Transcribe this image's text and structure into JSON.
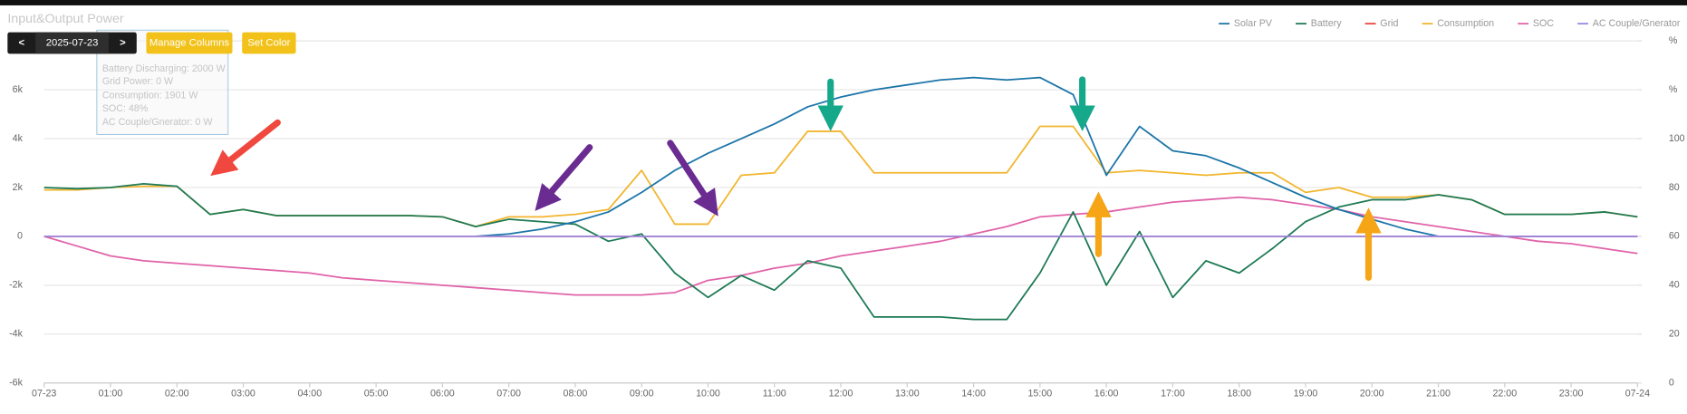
{
  "ui": {
    "title": "Input&Output Power",
    "prev_button": "<",
    "date": "2025-07-23",
    "next_button": ">",
    "manage_columns": "Manage Columns",
    "set_color": "Set Color",
    "tooltip": [
      "Battery Discharging: 2000 W",
      "Grid Power: 0 W",
      "Consumption: 1901 W",
      "SOC: 48%",
      "AC Couple/Gnerator: 0 W"
    ]
  },
  "chart_data": {
    "type": "line",
    "x": [
      0,
      0.5,
      1,
      1.5,
      2,
      2.5,
      3,
      3.5,
      4,
      4.5,
      5,
      5.5,
      6,
      6.5,
      7,
      7.5,
      8,
      8.5,
      9,
      9.5,
      10,
      10.5,
      11,
      11.5,
      12,
      12.5,
      13,
      13.5,
      14,
      14.5,
      15,
      15.5,
      16,
      16.5,
      17,
      17.5,
      18,
      18.5,
      19,
      19.5,
      20,
      20.5,
      21,
      21.5,
      22,
      22.5,
      23,
      23.5,
      24
    ],
    "xlim": [
      0,
      24
    ],
    "xticks": [
      {
        "value": 0,
        "label": "07-23"
      },
      {
        "value": 1,
        "label": "01:00"
      },
      {
        "value": 2,
        "label": "02:00"
      },
      {
        "value": 3,
        "label": "03:00"
      },
      {
        "value": 4,
        "label": "04:00"
      },
      {
        "value": 5,
        "label": "05:00"
      },
      {
        "value": 6,
        "label": "06:00"
      },
      {
        "value": 7,
        "label": "07:00"
      },
      {
        "value": 8,
        "label": "08:00"
      },
      {
        "value": 9,
        "label": "09:00"
      },
      {
        "value": 10,
        "label": "10:00"
      },
      {
        "value": 11,
        "label": "11:00"
      },
      {
        "value": 12,
        "label": "12:00"
      },
      {
        "value": 13,
        "label": "13:00"
      },
      {
        "value": 14,
        "label": "14:00"
      },
      {
        "value": 15,
        "label": "15:00"
      },
      {
        "value": 16,
        "label": "16:00"
      },
      {
        "value": 17,
        "label": "17:00"
      },
      {
        "value": 18,
        "label": "18:00"
      },
      {
        "value": 19,
        "label": "19:00"
      },
      {
        "value": 20,
        "label": "20:00"
      },
      {
        "value": 21,
        "label": "21:00"
      },
      {
        "value": 22,
        "label": "22:00"
      },
      {
        "value": 23,
        "label": "23:00"
      },
      {
        "value": 24,
        "label": "07-24"
      }
    ],
    "ylim": [
      -6000,
      8000
    ],
    "yticks": [
      {
        "value": -6000,
        "label": "-6k"
      },
      {
        "value": -4000,
        "label": "-4k"
      },
      {
        "value": -2000,
        "label": "-2k"
      },
      0,
      {
        "value": 2000,
        "label": "2k"
      },
      {
        "value": 4000,
        "label": "4k"
      },
      {
        "value": 6000,
        "label": "6k"
      }
    ],
    "y2lim": [
      0,
      140
    ],
    "y2ticks": [
      0,
      20,
      40,
      60,
      80,
      100,
      {
        "value": 120,
        "label": "%"
      },
      {
        "value": 140,
        "label": "%"
      }
    ],
    "grid": true,
    "legend": "top-right",
    "series": [
      {
        "name": "Solar PV",
        "color": "#1b75a8",
        "values": [
          null,
          null,
          null,
          null,
          null,
          null,
          null,
          null,
          null,
          null,
          null,
          null,
          null,
          0,
          100,
          300,
          600,
          1000,
          1800,
          2700,
          3400,
          4000,
          4600,
          5300,
          5700,
          6000,
          6200,
          6400,
          6500,
          6400,
          6500,
          5800,
          2500,
          4500,
          3500,
          3300,
          2800,
          2200,
          1600,
          1100,
          700,
          300,
          0,
          0,
          0,
          0,
          0,
          0,
          0
        ]
      },
      {
        "name": "Battery",
        "color": "#1e7a55",
        "values": [
          2000,
          1950,
          2000,
          2150,
          2050,
          900,
          1100,
          850,
          850,
          850,
          850,
          850,
          800,
          400,
          700,
          600,
          500,
          -200,
          100,
          -1500,
          -2500,
          -1600,
          -2200,
          -1000,
          -1300,
          -3300,
          -3300,
          -3300,
          -3400,
          -3400,
          -1500,
          1000,
          -2000,
          200,
          -2500,
          -1000,
          -1500,
          -500,
          600,
          1200,
          1500,
          1500,
          1700,
          1500,
          900,
          900,
          900,
          1000,
          800
        ]
      },
      {
        "name": "Grid",
        "color": "#e8463c",
        "values": [
          0,
          0,
          0,
          0,
          0,
          0,
          0,
          0,
          0,
          0,
          0,
          0,
          0,
          0,
          0,
          0,
          0,
          0,
          0,
          0,
          0,
          0,
          0,
          0,
          0,
          0,
          0,
          0,
          0,
          0,
          0,
          0,
          0,
          0,
          0,
          0,
          0,
          0,
          0,
          0,
          0,
          0,
          0,
          0,
          0,
          0,
          0,
          0,
          0
        ]
      },
      {
        "name": "Consumption",
        "color": "#f2b52d",
        "values": [
          1900,
          1900,
          2000,
          2050,
          2050,
          900,
          1100,
          850,
          850,
          850,
          850,
          850,
          800,
          400,
          800,
          800,
          900,
          1100,
          2700,
          500,
          500,
          2500,
          2600,
          4300,
          4300,
          2600,
          2600,
          2600,
          2600,
          2600,
          4500,
          4500,
          2600,
          2700,
          2600,
          2500,
          2600,
          2600,
          1800,
          2000,
          1600,
          1600,
          1700,
          1500,
          900,
          900,
          900,
          1000,
          800
        ]
      },
      {
        "name": "SOC",
        "color": "#e063a8",
        "axis": "y2",
        "values": [
          60,
          56,
          52,
          50,
          49,
          48,
          47,
          46,
          45,
          43,
          42,
          41,
          40,
          39,
          38,
          37,
          36,
          36,
          36,
          37,
          42,
          44,
          47,
          49,
          52,
          54,
          56,
          58,
          61,
          64,
          68,
          69,
          70,
          72,
          74,
          75,
          76,
          75,
          73,
          71,
          68,
          66,
          64,
          62,
          60,
          58,
          57,
          55,
          53
        ]
      },
      {
        "name": "AC Couple/Gnerator",
        "color": "#9b86e0",
        "values": [
          0,
          0,
          0,
          0,
          0,
          0,
          0,
          0,
          0,
          0,
          0,
          0,
          0,
          0,
          0,
          0,
          0,
          0,
          0,
          0,
          0,
          0,
          0,
          0,
          0,
          0,
          0,
          0,
          0,
          0,
          0,
          0,
          0,
          0,
          0,
          0,
          0,
          0,
          0,
          0,
          0,
          0,
          0,
          0,
          0,
          0,
          0,
          0,
          0
        ]
      }
    ]
  }
}
